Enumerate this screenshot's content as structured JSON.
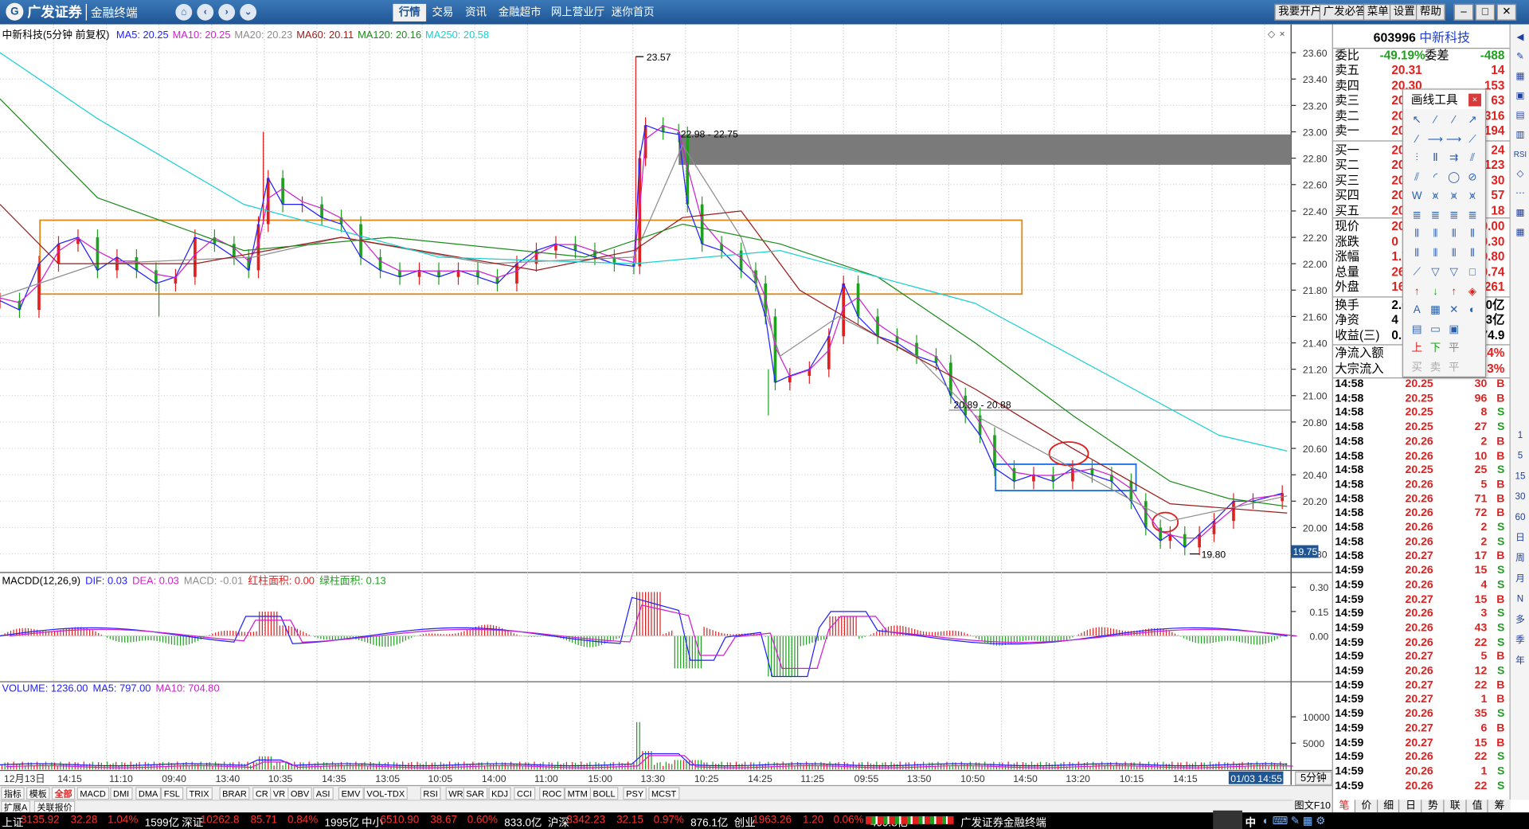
{
  "app": {
    "brand": "广发证券",
    "product": "金融终端",
    "menu": [
      "行情",
      "交易",
      "资讯",
      "金融超市",
      "网上营业厅",
      "迷你首页"
    ],
    "active_menu": "行情",
    "right_buttons": [
      "我要开户",
      "广发必答",
      "菜单",
      "设置",
      "帮助"
    ],
    "window_buttons": [
      "minimize-icon",
      "maximize-icon",
      "close-icon"
    ]
  },
  "chart": {
    "title": "中新科技(5分钟 前复权)",
    "ma_legend": [
      {
        "label": "MA5: 20.25",
        "color": "#1f1fff"
      },
      {
        "label": "MA10: 20.25",
        "color": "#d01fd0"
      },
      {
        "label": "MA20: 20.23",
        "color": "#8c8c8c"
      },
      {
        "label": "MA60: 20.11",
        "color": "#9a1a1a"
      },
      {
        "label": "MA120: 20.16",
        "color": "#1a8a1a"
      },
      {
        "label": "MA250: 20.58",
        "color": "#19d0d0"
      }
    ],
    "price_axis": [
      "23.60",
      "23.40",
      "23.20",
      "23.00",
      "22.80",
      "22.60",
      "22.40",
      "22.20",
      "22.00",
      "21.80",
      "21.60",
      "21.40",
      "21.20",
      "21.00",
      "20.80",
      "20.60",
      "20.40",
      "20.20",
      "20.00",
      "19.80"
    ],
    "current_price_tag": "19.75",
    "annotations": {
      "high": "23.57",
      "gap_upper": "22.98 - 22.75",
      "gap_lower": "20.89 - 20.88",
      "low": "19.80"
    },
    "macd_legend": [
      {
        "label": "MACDD(12,26,9)",
        "color": "#000"
      },
      {
        "label": "DIF: 0.03",
        "color": "#1f1fff"
      },
      {
        "label": "DEA: 0.03",
        "color": "#d01fd0"
      },
      {
        "label": "MACD: -0.01",
        "color": "#8c8c8c"
      },
      {
        "label": "红柱面积: 0.00",
        "color": "#e0201f"
      },
      {
        "label": "绿柱面积: 0.13",
        "color": "#1fa01f"
      }
    ],
    "macd_axis": [
      "0.30",
      "0.15",
      "0.00"
    ],
    "volume_legend": [
      {
        "label": "VOLUME: 1236.00",
        "color": "#1f1fff"
      },
      {
        "label": "MA5: 797.00",
        "color": "#1f1fff"
      },
      {
        "label": "MA10: 704.80",
        "color": "#d01fd0"
      }
    ],
    "volume_axis": [
      "10000",
      "5000"
    ],
    "time_axis": [
      "12月13日",
      "14:15",
      "11:10",
      "09:40",
      "13:40",
      "10:35",
      "14:35",
      "13:05",
      "10:05",
      "14:00",
      "11:00",
      "15:00",
      "13:30",
      "10:25",
      "14:25",
      "11:25",
      "09:55",
      "13:50",
      "10:50",
      "14:50",
      "13:20",
      "10:15",
      "14:15"
    ],
    "time_cursor": "01/03 14:55",
    "period_label": "5分钟"
  },
  "indicators": {
    "tabs": [
      "指标",
      "模板",
      "全部",
      "MACD",
      "DMI",
      "DMA",
      "FSL",
      "TRIX",
      "BRAR",
      "CR",
      "VR",
      "OBV",
      "ASI",
      "EMV",
      "VOL-TDX",
      "RSI",
      "WR",
      "SAR",
      "KDJ",
      "CCI",
      "ROC",
      "MTM",
      "BOLL",
      "PSY",
      "MCST"
    ],
    "active": "全部",
    "ext": [
      "扩展A",
      "关联报价"
    ]
  },
  "quote": {
    "code": "603996",
    "name": "中新科技",
    "webi_label": "委比",
    "webi_value": "-49.19%",
    "weicha_label": "委差",
    "weicha_value": "-488",
    "sell": [
      {
        "label": "卖五",
        "price": "20.31",
        "vol": "14"
      },
      {
        "label": "卖四",
        "price": "20.30",
        "vol": "153"
      },
      {
        "label": "卖三",
        "price": "20.29",
        "vol": "63"
      },
      {
        "label": "卖二",
        "price": "20.28",
        "vol": "316"
      },
      {
        "label": "卖一",
        "price": "20.27",
        "vol": "194"
      }
    ],
    "buy": [
      {
        "label": "买一",
        "price": "20.26",
        "vol": "24"
      },
      {
        "label": "买二",
        "price": "20.25",
        "vol": "123"
      },
      {
        "label": "买三",
        "price": "20.24",
        "vol": "30"
      },
      {
        "label": "买四",
        "price": "20.23",
        "vol": "57"
      },
      {
        "label": "买五",
        "price": "20.22",
        "vol": "18"
      }
    ],
    "stats": [
      {
        "label": "现价",
        "v1": "20",
        "v2": "0.00"
      },
      {
        "label": "涨跌",
        "v1": "0",
        "v2": "0.30"
      },
      {
        "label": "涨幅",
        "v1": "1.7",
        "v2": "9.80"
      },
      {
        "label": "总量",
        "v1": "26",
        "v2": "0.74"
      },
      {
        "label": "外盘",
        "v1": "16",
        "v2": "261"
      }
    ],
    "stats2": [
      {
        "label": "换手",
        "v1": "2.6",
        "v2": "0亿"
      },
      {
        "label": "净资",
        "v1": "4",
        "v2": "3亿"
      },
      {
        "label": "收益(三)",
        "v1": "0.",
        "v2": "74.9"
      }
    ],
    "flow": [
      {
        "label": "净流入额",
        "v2": "24%"
      },
      {
        "label": "大宗流入",
        "v2": "3%"
      }
    ],
    "ticks": [
      [
        "14:58",
        "20.25",
        "30",
        "B"
      ],
      [
        "14:58",
        "20.25",
        "96",
        "B"
      ],
      [
        "14:58",
        "20.25",
        "8",
        "S"
      ],
      [
        "14:58",
        "20.25",
        "27",
        "S"
      ],
      [
        "14:58",
        "20.26",
        "2",
        "B"
      ],
      [
        "14:58",
        "20.26",
        "10",
        "B"
      ],
      [
        "14:58",
        "20.25",
        "25",
        "S"
      ],
      [
        "14:58",
        "20.26",
        "5",
        "B"
      ],
      [
        "14:58",
        "20.26",
        "71",
        "B"
      ],
      [
        "14:58",
        "20.26",
        "72",
        "B"
      ],
      [
        "14:58",
        "20.26",
        "2",
        "S"
      ],
      [
        "14:58",
        "20.26",
        "2",
        "S"
      ],
      [
        "14:58",
        "20.27",
        "17",
        "B"
      ],
      [
        "14:59",
        "20.26",
        "15",
        "S"
      ],
      [
        "14:59",
        "20.26",
        "4",
        "S"
      ],
      [
        "14:59",
        "20.27",
        "15",
        "B"
      ],
      [
        "14:59",
        "20.26",
        "3",
        "S"
      ],
      [
        "14:59",
        "20.26",
        "43",
        "S"
      ],
      [
        "14:59",
        "20.26",
        "22",
        "S"
      ],
      [
        "14:59",
        "20.27",
        "5",
        "B"
      ],
      [
        "14:59",
        "20.26",
        "12",
        "S"
      ],
      [
        "14:59",
        "20.27",
        "22",
        "B"
      ],
      [
        "14:59",
        "20.27",
        "1",
        "B"
      ],
      [
        "14:59",
        "20.26",
        "35",
        "S"
      ],
      [
        "14:59",
        "20.27",
        "6",
        "B"
      ],
      [
        "14:59",
        "20.27",
        "15",
        "B"
      ],
      [
        "14:59",
        "20.26",
        "22",
        "S"
      ],
      [
        "14:59",
        "20.26",
        "1",
        "S"
      ],
      [
        "14:59",
        "20.26",
        "22",
        "S"
      ]
    ],
    "bottom_tabs": [
      "笔",
      "价",
      "细",
      "日",
      "势",
      "联",
      "值",
      "筹"
    ]
  },
  "side_tabs": [
    "1",
    "5",
    "15",
    "30",
    "60",
    "日",
    "周",
    "月",
    "N",
    "多",
    "季",
    "年"
  ],
  "tools": {
    "title": "画线工具",
    "rows": [
      [
        "↖",
        "⁄",
        "⁄",
        "↗"
      ],
      [
        "⁄",
        "⟶",
        "⟶",
        "⟋"
      ],
      [
        "⫶",
        "Ⅱ",
        "⇉",
        "⫽"
      ],
      [
        "⫽",
        "◜",
        "◯",
        "⊘"
      ],
      [
        "W",
        "⩙",
        "⩙",
        "⩙"
      ],
      [
        "≣",
        "≣",
        "≣",
        "≣"
      ],
      [
        "⦀",
        "⦀",
        "⦀",
        "⦀"
      ],
      [
        "⦀",
        "⦀",
        "⦀",
        "⦀"
      ],
      [
        "⟋",
        "▽",
        "▽",
        "□"
      ],
      [
        "↑",
        "↓",
        "↑",
        "◈"
      ],
      [
        "A",
        "▦",
        "✕",
        "◐"
      ],
      [
        "▤",
        "▭",
        "▣",
        ""
      ],
      [
        "上",
        "下",
        "平",
        ""
      ],
      [
        "买",
        "卖",
        "平",
        ""
      ]
    ]
  },
  "status": {
    "items": [
      {
        "t": "上证",
        "c": "w"
      },
      {
        "t": "3135.92",
        "c": "red"
      },
      {
        "t": "32.28",
        "c": "red"
      },
      {
        "t": "1.04%",
        "c": "red"
      },
      {
        "t": "1599亿",
        "c": "w"
      },
      {
        "t": "深证",
        "c": "w"
      },
      {
        "t": "10262.8",
        "c": "red"
      },
      {
        "t": "85.71",
        "c": "red"
      },
      {
        "t": "0.84%",
        "c": "red"
      },
      {
        "t": "1995亿",
        "c": "w"
      },
      {
        "t": "中小",
        "c": "w"
      },
      {
        "t": "6510.90",
        "c": "red"
      },
      {
        "t": "38.67",
        "c": "red"
      },
      {
        "t": "0.60%",
        "c": "red"
      },
      {
        "t": "833.0亿",
        "c": "w"
      },
      {
        "t": "沪深",
        "c": "w"
      },
      {
        "t": "3342.23",
        "c": "red"
      },
      {
        "t": "32.15",
        "c": "red"
      },
      {
        "t": "0.97%",
        "c": "red"
      },
      {
        "t": "876.1亿",
        "c": "w"
      },
      {
        "t": "创业",
        "c": "w"
      },
      {
        "t": "1963.26",
        "c": "red"
      },
      {
        "t": "1.20",
        "c": "red"
      },
      {
        "t": "0.06%",
        "c": "red"
      },
      {
        "t": "499.8亿",
        "c": "w"
      }
    ],
    "broker": "广发证券金融终端",
    "tuwen": "图文F10",
    "zhong": "中"
  }
}
